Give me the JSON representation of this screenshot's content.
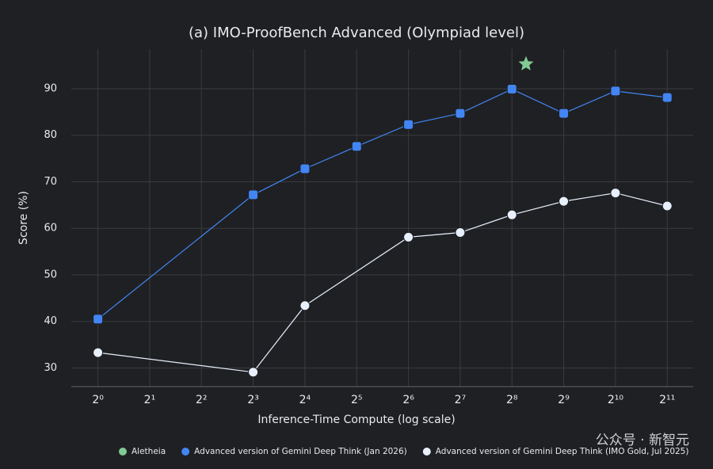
{
  "chart_data": {
    "type": "line",
    "title": "(a) IMO-ProofBench Advanced (Olympiad level)",
    "x_label": "Inference-Time Compute (log scale)",
    "y_label": "Score (%)",
    "x_scale": "log2",
    "grid": true,
    "legend": "bottom",
    "xlim": [
      0.7,
      2900
    ],
    "xticks": [
      {
        "value": 1,
        "label": "2⁰"
      },
      {
        "value": 2,
        "label": "2¹"
      },
      {
        "value": 4,
        "label": "2²"
      },
      {
        "value": 8,
        "label": "2³"
      },
      {
        "value": 16,
        "label": "2⁴"
      },
      {
        "value": 32,
        "label": "2⁵"
      },
      {
        "value": 64,
        "label": "2⁶"
      },
      {
        "value": 128,
        "label": "2⁷"
      },
      {
        "value": 256,
        "label": "2⁸"
      },
      {
        "value": 512,
        "label": "2⁹"
      },
      {
        "value": 1024,
        "label": "2¹⁰"
      },
      {
        "value": 2048,
        "label": "2¹¹"
      }
    ],
    "ylim": [
      26,
      98.5
    ],
    "yticks": [
      30,
      40,
      50,
      60,
      70,
      80,
      90
    ],
    "series": [
      {
        "name": "Aletheia",
        "color": "#81c995",
        "marker": "star",
        "x": [
          309
        ],
        "values": [
          95.3
        ]
      },
      {
        "name": "Advanced version of Gemini Deep Think (Jan 2026)",
        "color": "#4285f4",
        "marker": "square",
        "x": [
          1,
          8,
          16,
          32,
          64,
          128,
          256,
          512,
          1024,
          2048
        ],
        "values": [
          40.5,
          67.2,
          72.8,
          77.6,
          82.3,
          84.7,
          89.9,
          84.7,
          89.5,
          88.1
        ]
      },
      {
        "name": "Advanced version of Gemini Deep Think (IMO Gold, Jul 2025)",
        "color": "#e8f0fe",
        "marker": "circle",
        "x": [
          1,
          8,
          16,
          64,
          128,
          256,
          512,
          1024,
          2048
        ],
        "values": [
          33.3,
          29.1,
          43.4,
          58.1,
          59.1,
          62.9,
          65.8,
          67.6,
          64.8
        ]
      }
    ],
    "watermark": "公众号 · 新智元"
  }
}
